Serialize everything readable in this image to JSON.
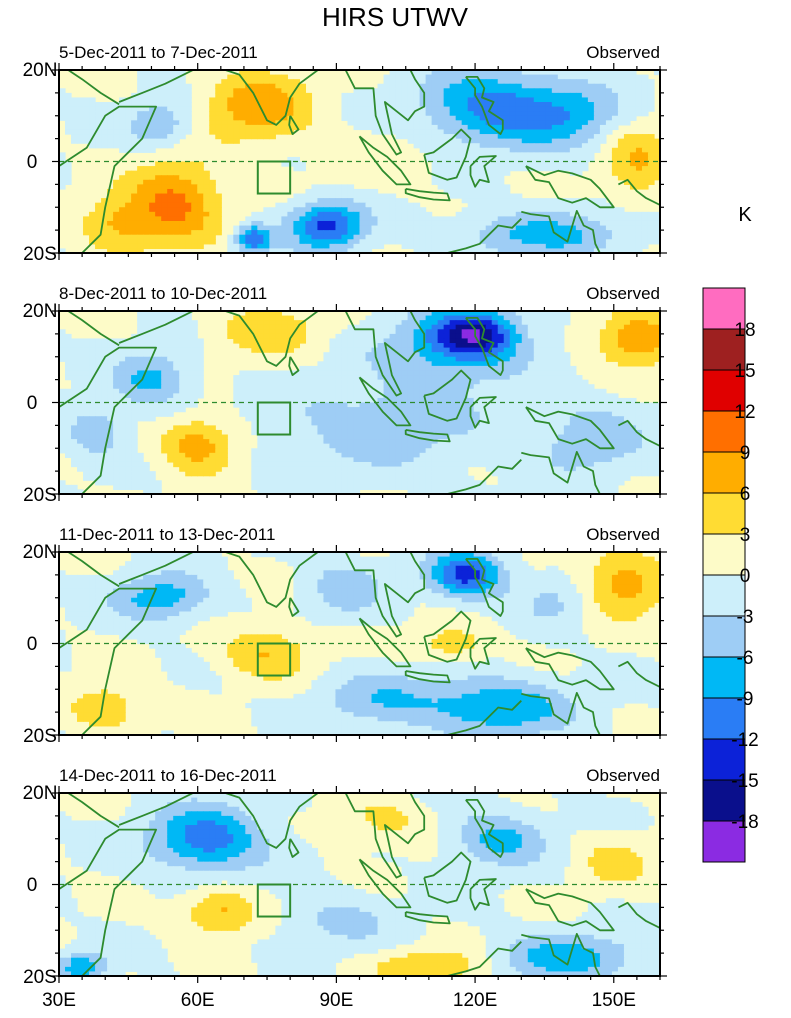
{
  "figure": {
    "title": "HIRS UTWV",
    "unit_label": "K"
  },
  "colors": {
    "frame": "#000000",
    "coast": "#2e8b2e",
    "equator": "#2e8b2e",
    "levels": [
      "#8b2be2",
      "#0a0f8c",
      "#0c22d8",
      "#2a7df5",
      "#00b8f5",
      "#9ecdf5",
      "#cdeffa",
      "#fdfbc8",
      "#ffdc33",
      "#ffad00",
      "#ff6f00",
      "#e00000",
      "#9e2020",
      "#ff6cc0"
    ]
  },
  "chart_data": {
    "type": "heatmap",
    "title": "HIRS UTWV",
    "xlabel": "",
    "ylabel": "",
    "xlim": [
      30,
      160
    ],
    "ylim": [
      -20,
      20
    ],
    "x_ticks": [
      "30E",
      "60E",
      "90E",
      "120E",
      "150E"
    ],
    "x_tick_values": [
      30,
      60,
      90,
      120,
      150
    ],
    "y_ticks": [
      "20N",
      "0",
      "20S"
    ],
    "y_tick_values": [
      20,
      0,
      -20
    ],
    "colorbar": {
      "unit": "K",
      "labels": [
        "18",
        "15",
        "12",
        "9",
        "6",
        "3",
        "0",
        "-3",
        "-6",
        "-9",
        "-12",
        "-15",
        "-18"
      ],
      "bin_edges": [
        -18,
        -15,
        -12,
        -9,
        -6,
        -3,
        0,
        3,
        6,
        9,
        12,
        15,
        18
      ]
    },
    "box_region": {
      "lon": [
        73,
        80
      ],
      "lat": [
        -7,
        0
      ]
    },
    "panels": [
      {
        "period": "5-Dec-2011 to 7-Dec-2011",
        "label": "Observed",
        "blobs": [
          {
            "lon": 73,
            "lat": 12,
            "rx": 12,
            "ry": 8,
            "v": 8
          },
          {
            "lon": 55,
            "lat": -9,
            "rx": 10,
            "ry": 9,
            "v": 10
          },
          {
            "lon": 42,
            "lat": -14,
            "rx": 8,
            "ry": 6,
            "v": 6
          },
          {
            "lon": 88,
            "lat": -14,
            "rx": 8,
            "ry": 5,
            "v": -13
          },
          {
            "lon": 72,
            "lat": -17,
            "rx": 4,
            "ry": 3,
            "v": -12
          },
          {
            "lon": 123,
            "lat": 12,
            "rx": 14,
            "ry": 8,
            "v": -10
          },
          {
            "lon": 140,
            "lat": 10,
            "rx": 12,
            "ry": 7,
            "v": -7
          },
          {
            "lon": 135,
            "lat": -16,
            "rx": 18,
            "ry": 5,
            "v": -7
          },
          {
            "lon": 155,
            "lat": 0,
            "rx": 7,
            "ry": 9,
            "v": 6
          },
          {
            "lon": 52,
            "lat": 8,
            "rx": 7,
            "ry": 5,
            "v": -6
          },
          {
            "lon": 100,
            "lat": 0,
            "rx": 12,
            "ry": 6,
            "v": 2
          }
        ]
      },
      {
        "period": "8-Dec-2011 to 10-Dec-2011",
        "label": "Observed",
        "blobs": [
          {
            "lon": 120,
            "lat": 15,
            "rx": 9,
            "ry": 5,
            "v": -13
          },
          {
            "lon": 115,
            "lat": 12,
            "rx": 15,
            "ry": 8,
            "v": -7
          },
          {
            "lon": 155,
            "lat": 14,
            "rx": 9,
            "ry": 6,
            "v": 9
          },
          {
            "lon": 60,
            "lat": -9,
            "rx": 8,
            "ry": 6,
            "v": 8
          },
          {
            "lon": 50,
            "lat": 5,
            "rx": 8,
            "ry": 6,
            "v": -7
          },
          {
            "lon": 75,
            "lat": 16,
            "rx": 12,
            "ry": 6,
            "v": 5
          },
          {
            "lon": 100,
            "lat": -5,
            "rx": 22,
            "ry": 10,
            "v": -5
          },
          {
            "lon": 145,
            "lat": -8,
            "rx": 12,
            "ry": 8,
            "v": -5
          },
          {
            "lon": 38,
            "lat": -6,
            "rx": 6,
            "ry": 5,
            "v": -6
          }
        ]
      },
      {
        "period": "11-Dec-2011 to 13-Dec-2011",
        "label": "Observed",
        "blobs": [
          {
            "lon": 118,
            "lat": 15,
            "rx": 8,
            "ry": 5,
            "v": -13
          },
          {
            "lon": 52,
            "lat": 10,
            "rx": 10,
            "ry": 5,
            "v": -8
          },
          {
            "lon": 125,
            "lat": -14,
            "rx": 15,
            "ry": 6,
            "v": -9
          },
          {
            "lon": 152,
            "lat": 13,
            "rx": 10,
            "ry": 7,
            "v": 8
          },
          {
            "lon": 75,
            "lat": -2,
            "rx": 10,
            "ry": 6,
            "v": 6
          },
          {
            "lon": 115,
            "lat": 0,
            "rx": 8,
            "ry": 4,
            "v": 5
          },
          {
            "lon": 40,
            "lat": -14,
            "rx": 8,
            "ry": 5,
            "v": 6
          },
          {
            "lon": 92,
            "lat": 12,
            "rx": 8,
            "ry": 6,
            "v": -5
          },
          {
            "lon": 100,
            "lat": -12,
            "rx": 15,
            "ry": 6,
            "v": -5
          },
          {
            "lon": 138,
            "lat": 10,
            "rx": 8,
            "ry": 6,
            "v": -4
          }
        ]
      },
      {
        "period": "14-Dec-2011 to 16-Dec-2011",
        "label": "Observed",
        "blobs": [
          {
            "lon": 62,
            "lat": 10,
            "rx": 12,
            "ry": 7,
            "v": -11
          },
          {
            "lon": 65,
            "lat": -6,
            "rx": 8,
            "ry": 5,
            "v": 7
          },
          {
            "lon": 125,
            "lat": 10,
            "rx": 10,
            "ry": 6,
            "v": -7
          },
          {
            "lon": 140,
            "lat": -16,
            "rx": 15,
            "ry": 5,
            "v": -8
          },
          {
            "lon": 110,
            "lat": -18,
            "rx": 12,
            "ry": 4,
            "v": 6
          },
          {
            "lon": 100,
            "lat": 14,
            "rx": 10,
            "ry": 5,
            "v": 4
          },
          {
            "lon": 150,
            "lat": 5,
            "rx": 8,
            "ry": 6,
            "v": 4
          },
          {
            "lon": 35,
            "lat": -18,
            "rx": 5,
            "ry": 3,
            "v": -9
          },
          {
            "lon": 90,
            "lat": -8,
            "rx": 12,
            "ry": 6,
            "v": -4
          }
        ]
      }
    ]
  }
}
